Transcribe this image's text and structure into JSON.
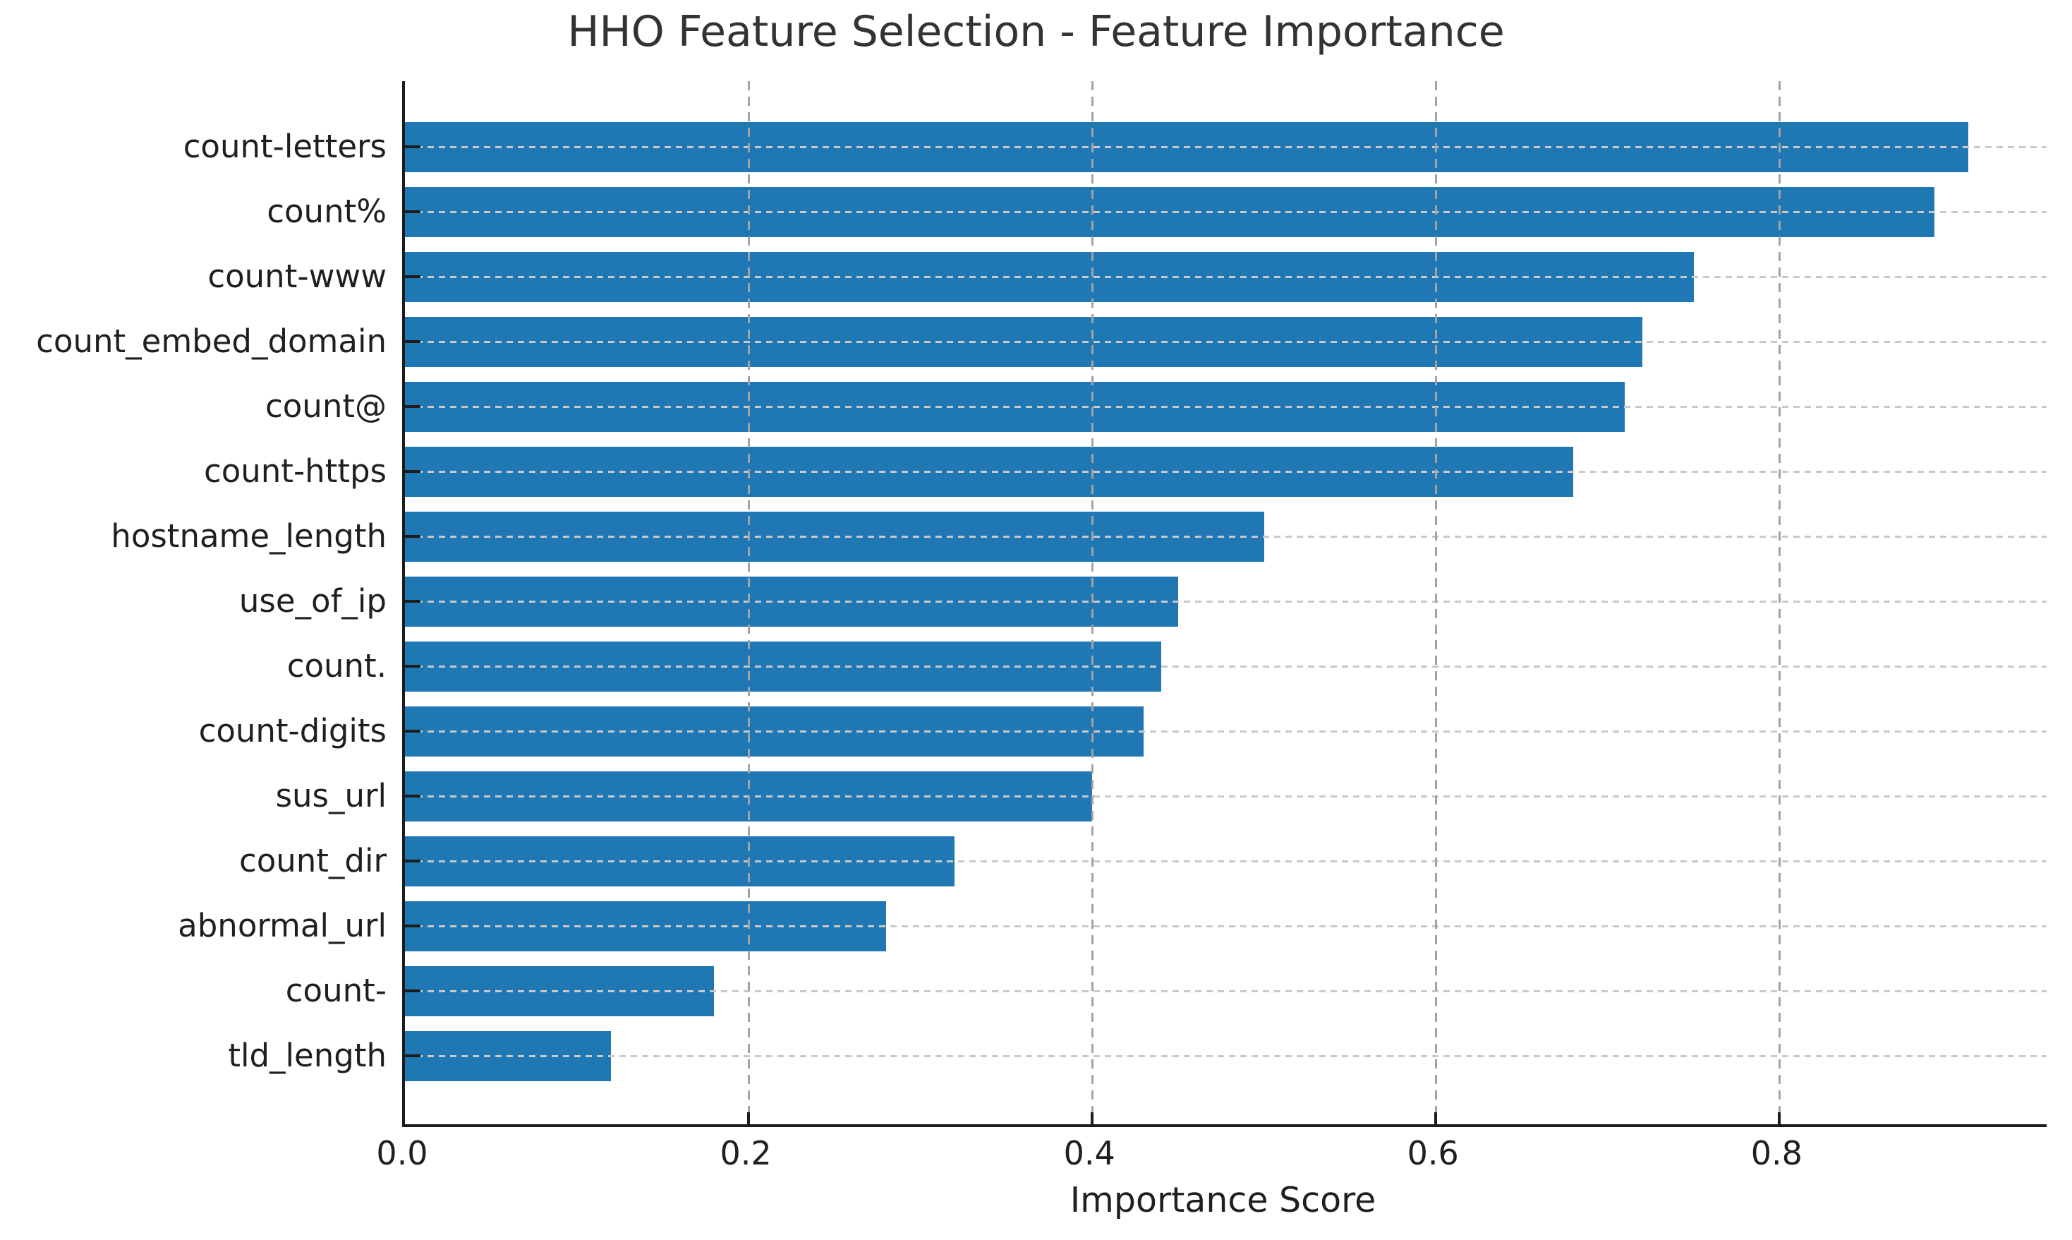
{
  "chart_data": {
    "type": "bar",
    "orientation": "horizontal",
    "title": "HHO Feature Selection - Feature Importance",
    "xlabel": "Importance Score",
    "ylabel": "",
    "categories": [
      "count-letters",
      "count%",
      "count-www",
      "count_embed_domain",
      "count@",
      "count-https",
      "hostname_length",
      "use_of_ip",
      "count.",
      "count-digits",
      "sus_url",
      "count_dir",
      "abnormal_url",
      "count-",
      "tld_length"
    ],
    "values": [
      0.91,
      0.89,
      0.75,
      0.72,
      0.71,
      0.68,
      0.5,
      0.45,
      0.44,
      0.43,
      0.4,
      0.32,
      0.28,
      0.18,
      0.12
    ],
    "xticks": [
      0.0,
      0.2,
      0.4,
      0.6,
      0.8
    ],
    "xtick_labels": [
      "0.0",
      "0.2",
      "0.4",
      "0.6",
      "0.8"
    ],
    "xlim": [
      0,
      0.9555
    ],
    "grid": "dashed gridlines on both axes, drawn over bars",
    "legend": "none",
    "colors": {
      "bar": "#1f77b4",
      "spine": "#1c1c1c",
      "horizontal_grid": "#c9c9c9",
      "vertical_grid": "#a3a3a3",
      "text": "#1f1f1f",
      "title": "#333333",
      "background": "#ffffff"
    }
  }
}
